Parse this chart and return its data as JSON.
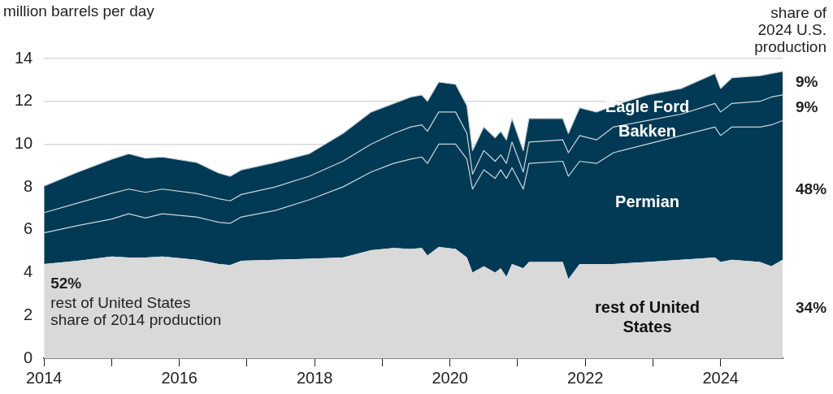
{
  "chart_data": {
    "type": "area",
    "stacked": true,
    "ylabel": "million barrels per day",
    "x": [
      "2014-01",
      "2014-07",
      "2015-01",
      "2015-04",
      "2015-07",
      "2015-10",
      "2016-04",
      "2016-08",
      "2016-10",
      "2016-12",
      "2017-06",
      "2017-12",
      "2018-06",
      "2018-11",
      "2019-03",
      "2019-06",
      "2019-08",
      "2019-09",
      "2019-11",
      "2020-02",
      "2020-04",
      "2020-05",
      "2020-07",
      "2020-09",
      "2020-10",
      "2020-11",
      "2020-12",
      "2021-02",
      "2021-03",
      "2021-09",
      "2021-10",
      "2021-12",
      "2022-03",
      "2022-06",
      "2022-12",
      "2023-06",
      "2023-12",
      "2024-01",
      "2024-03",
      "2024-08",
      "2024-10",
      "2024-12"
    ],
    "series": [
      {
        "name": "rest of United States",
        "color": "#d9d9d9",
        "values": [
          4.4,
          4.55,
          4.75,
          4.7,
          4.7,
          4.75,
          4.6,
          4.4,
          4.35,
          4.55,
          4.6,
          4.65,
          4.7,
          5.05,
          5.15,
          5.1,
          5.15,
          4.8,
          5.2,
          5.1,
          4.7,
          4.0,
          4.3,
          4.0,
          4.2,
          3.8,
          4.4,
          4.2,
          4.5,
          4.5,
          3.7,
          4.4,
          4.4,
          4.4,
          4.5,
          4.6,
          4.7,
          4.5,
          4.6,
          4.5,
          4.3,
          4.6
        ]
      },
      {
        "name": "Permian",
        "color": "#023a55",
        "values": [
          1.46,
          1.65,
          1.75,
          2.05,
          1.85,
          2.0,
          2.0,
          1.95,
          1.95,
          2.05,
          2.3,
          2.75,
          3.3,
          3.65,
          3.95,
          4.2,
          4.25,
          4.3,
          4.8,
          4.9,
          4.6,
          3.9,
          4.5,
          4.4,
          4.6,
          4.6,
          4.5,
          3.7,
          4.6,
          4.7,
          4.8,
          4.8,
          4.7,
          5.2,
          5.5,
          5.8,
          6.1,
          5.9,
          6.2,
          6.3,
          6.6,
          6.5
        ]
      },
      {
        "name": "Bakken",
        "color": "#023a55",
        "values": [
          0.94,
          1.05,
          1.2,
          1.15,
          1.2,
          1.15,
          1.1,
          1.1,
          1.05,
          1.05,
          1.1,
          1.1,
          1.2,
          1.3,
          1.4,
          1.5,
          1.5,
          1.5,
          1.5,
          1.5,
          1.2,
          0.7,
          0.9,
          0.8,
          0.7,
          0.7,
          1.2,
          0.8,
          1.0,
          1.0,
          1.1,
          1.2,
          1.1,
          1.2,
          1.1,
          1.0,
          1.1,
          1.1,
          1.1,
          1.2,
          1.3,
          1.2
        ]
      },
      {
        "name": "Eagle Ford",
        "color": "#023a55",
        "values": [
          1.25,
          1.45,
          1.6,
          1.65,
          1.6,
          1.5,
          1.45,
          1.2,
          1.15,
          1.15,
          1.15,
          1.05,
          1.3,
          1.5,
          1.4,
          1.4,
          1.4,
          1.4,
          1.4,
          1.3,
          1.3,
          1.1,
          1.1,
          1.1,
          1.1,
          1.1,
          1.1,
          1.0,
          1.1,
          1.0,
          0.9,
          1.3,
          1.3,
          1.0,
          1.2,
          1.2,
          1.4,
          1.1,
          1.2,
          1.2,
          1.1,
          1.1
        ]
      }
    ],
    "xlim": [
      "2014-01",
      "2024-12"
    ],
    "xticks": [
      {
        "value": "2014",
        "label": "2014"
      },
      {
        "value": "2015",
        "label": null
      },
      {
        "value": "2016",
        "label": "2016"
      },
      {
        "value": "2017",
        "label": null
      },
      {
        "value": "2018",
        "label": "2018"
      },
      {
        "value": "2019",
        "label": null
      },
      {
        "value": "2020",
        "label": "2020"
      },
      {
        "value": "2021",
        "label": null
      },
      {
        "value": "2022",
        "label": "2022"
      },
      {
        "value": "2023",
        "label": null
      },
      {
        "value": "2024",
        "label": "2024"
      }
    ],
    "ylim": [
      0,
      14
    ],
    "yticks": [
      0,
      2,
      4,
      6,
      8,
      10,
      12,
      14
    ],
    "grid": "y",
    "legend": false,
    "annotations": [
      "share of 2024 U.S. production",
      "9%",
      "9%",
      "48%",
      "34%",
      "52%",
      "rest of United States share of 2014 production"
    ]
  }
}
